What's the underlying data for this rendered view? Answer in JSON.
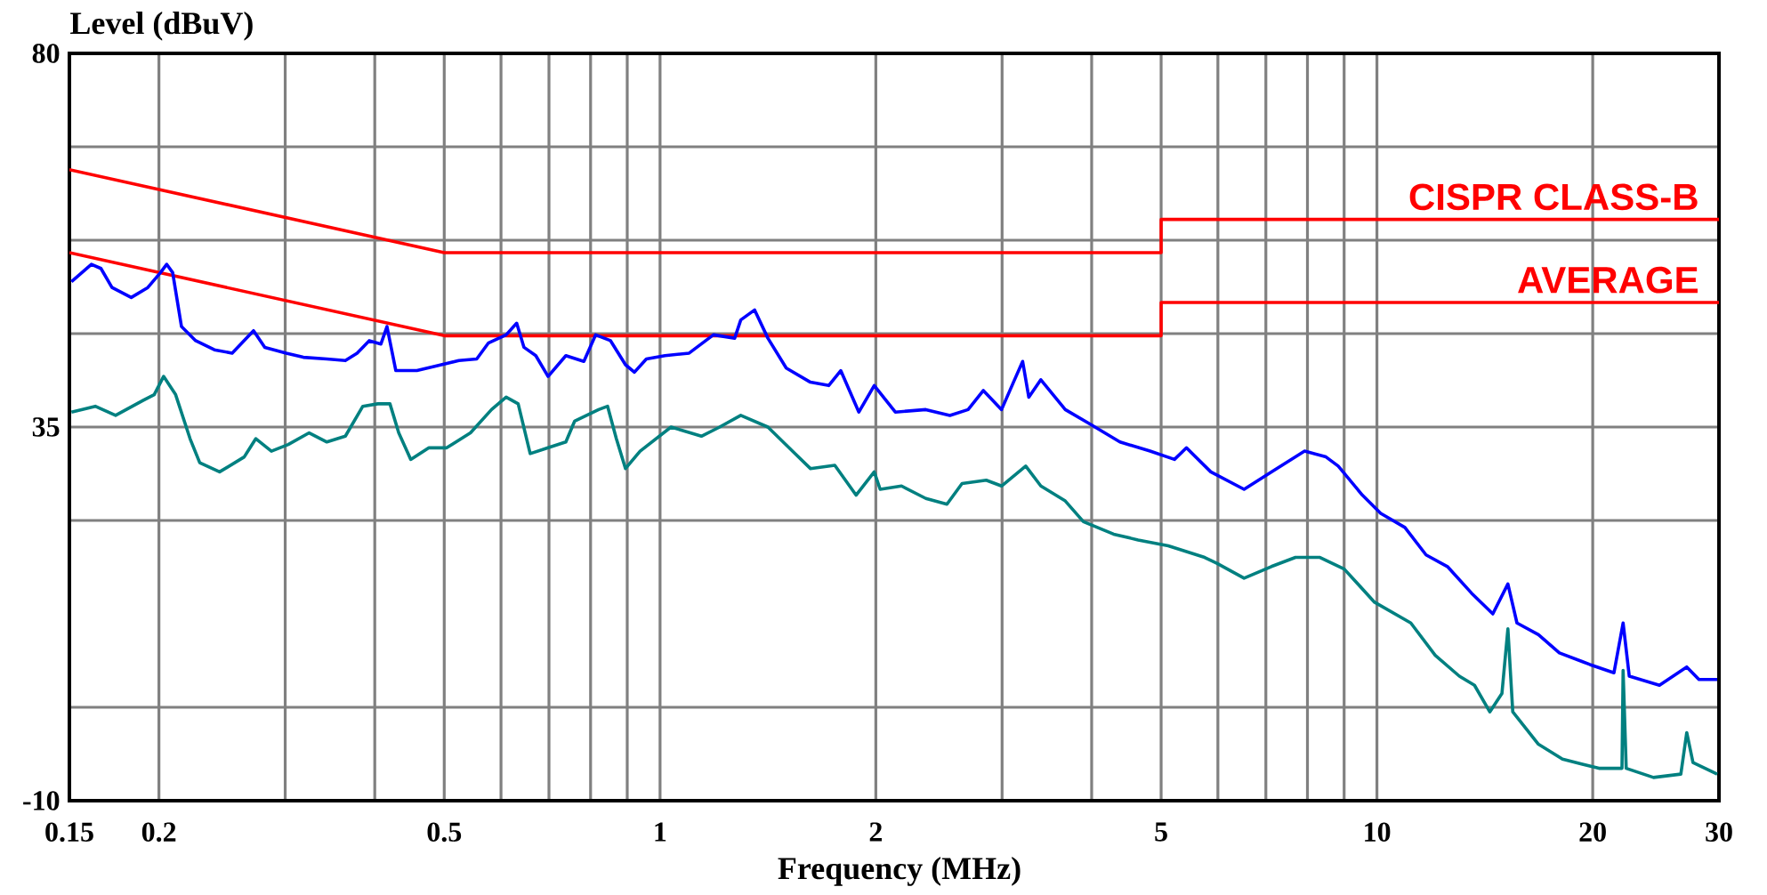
{
  "chart_data": {
    "type": "line",
    "xlabel": "Frequency (MHz)",
    "ylabel": "Level (dBuV)",
    "log": "x",
    "grid": true,
    "marker": "none",
    "xlim": [
      0.15,
      30
    ],
    "ylim": [
      -10,
      80
    ],
    "xticks": [
      0.15,
      0.2,
      {
        "value": 0.3,
        "label": null
      },
      {
        "value": 0.4,
        "label": null
      },
      0.5,
      {
        "value": 0.6,
        "label": null
      },
      {
        "value": 0.7,
        "label": null
      },
      {
        "value": 0.8,
        "label": null
      },
      {
        "value": 0.9,
        "label": null
      },
      1,
      2,
      {
        "value": 3,
        "label": null
      },
      {
        "value": 4,
        "label": null
      },
      5,
      {
        "value": 6,
        "label": null
      },
      {
        "value": 7,
        "label": null
      },
      {
        "value": 8,
        "label": null
      },
      {
        "value": 9,
        "label": null
      },
      10,
      20,
      30
    ],
    "yticks": [
      -10,
      {
        "value": 1.25,
        "label": null
      },
      {
        "value": 23.75,
        "label": null
      },
      35,
      {
        "value": 46.25,
        "label": null
      },
      {
        "value": 57.5,
        "label": null
      },
      {
        "value": 68.75,
        "label": null
      },
      80
    ],
    "series": [
      {
        "name": "CISPR CLASS-B",
        "color": "#ff0000",
        "x": [
          0.15,
          0.5,
          5,
          5,
          30
        ],
        "values": [
          66,
          56,
          56,
          60,
          60
        ]
      },
      {
        "name": "AVERAGE",
        "color": "#ff0000",
        "x": [
          0.15,
          0.5,
          5,
          5,
          30
        ],
        "values": [
          56,
          46,
          46,
          50,
          50
        ]
      },
      {
        "color": "#0000ff",
        "x": [
          0.151,
          0.161,
          0.166,
          0.172,
          0.183,
          0.193,
          0.201,
          0.205,
          0.209,
          0.215,
          0.225,
          0.239,
          0.253,
          0.271,
          0.281,
          0.301,
          0.318,
          0.343,
          0.364,
          0.378,
          0.393,
          0.408,
          0.416,
          0.428,
          0.458,
          0.485,
          0.524,
          0.555,
          0.576,
          0.61,
          0.631,
          0.646,
          0.671,
          0.698,
          0.739,
          0.783,
          0.813,
          0.853,
          0.895,
          0.921,
          0.957,
          1.016,
          1.098,
          1.187,
          1.271,
          1.296,
          1.355,
          1.414,
          1.5,
          1.621,
          1.719,
          1.787,
          1.894,
          1.99,
          2.129,
          2.348,
          2.537,
          2.69,
          2.825,
          2.995,
          3.112,
          3.205,
          3.269,
          3.398,
          3.675,
          3.972,
          4.38,
          4.826,
          5.219,
          5.424,
          5.865,
          6.527,
          7.126,
          7.929,
          8.49,
          8.831,
          9.543,
          10.12,
          10.94,
          11.71,
          12.54,
          13.55,
          14.51,
          15.23,
          15.68,
          16.8,
          17.97,
          19.82,
          21.41,
          22.05,
          22.49,
          24.78,
          27.05,
          28.13,
          29.83
        ],
        "values": [
          52.5,
          54.6,
          54.1,
          51.8,
          50.6,
          51.8,
          53.6,
          54.6,
          53.6,
          47.1,
          45.4,
          44.3,
          43.9,
          46.6,
          44.6,
          43.9,
          43.4,
          43.2,
          43.0,
          43.9,
          45.4,
          45.0,
          47.1,
          41.8,
          41.8,
          42.3,
          43.0,
          43.2,
          45.1,
          46.1,
          47.5,
          44.6,
          43.6,
          41.1,
          43.6,
          42.9,
          46.1,
          45.4,
          42.5,
          41.6,
          43.2,
          43.6,
          43.9,
          46.1,
          45.7,
          47.9,
          49.1,
          45.7,
          42.1,
          40.4,
          40.0,
          41.8,
          36.8,
          40.0,
          36.8,
          37.1,
          36.4,
          37.1,
          39.4,
          37.1,
          40.4,
          42.9,
          38.6,
          40.7,
          37.1,
          35.4,
          33.2,
          32.1,
          31.1,
          32.5,
          29.6,
          27.5,
          29.6,
          32.1,
          31.4,
          30.3,
          26.8,
          24.6,
          22.9,
          19.6,
          18.2,
          15.0,
          12.5,
          16.1,
          11.4,
          10.0,
          7.8,
          6.4,
          5.4,
          11.4,
          5.0,
          3.9,
          6.1,
          4.6,
          4.6
        ]
      },
      {
        "color": "#008080",
        "x": [
          0.151,
          0.163,
          0.174,
          0.19,
          0.197,
          0.203,
          0.211,
          0.221,
          0.228,
          0.243,
          0.263,
          0.273,
          0.287,
          0.303,
          0.324,
          0.343,
          0.364,
          0.385,
          0.404,
          0.42,
          0.432,
          0.449,
          0.476,
          0.504,
          0.544,
          0.582,
          0.61,
          0.634,
          0.659,
          0.698,
          0.739,
          0.76,
          0.821,
          0.845,
          0.869,
          0.895,
          0.938,
          1.036,
          1.142,
          1.211,
          1.296,
          1.414,
          1.53,
          1.621,
          1.753,
          1.877,
          1.99,
          2.028,
          2.172,
          2.348,
          2.513,
          2.638,
          2.851,
          2.995,
          3.237,
          3.398,
          3.675,
          3.896,
          4.293,
          4.644,
          5.116,
          5.75,
          5.98,
          6.527,
          7.126,
          7.7,
          8.328,
          9.003,
          9.924,
          11.15,
          12.06,
          13.03,
          13.68,
          14.37,
          14.94,
          15.23,
          15.47,
          16.8,
          18.15,
          20.4,
          21.97,
          22.05,
          22.27,
          24.31,
          26.54,
          27.05,
          27.6,
          29.83
        ],
        "values": [
          36.8,
          37.5,
          36.4,
          38.2,
          38.9,
          41.1,
          38.9,
          33.6,
          30.7,
          29.6,
          31.4,
          33.6,
          32.1,
          32.9,
          34.3,
          33.2,
          33.9,
          37.5,
          37.8,
          37.8,
          34.3,
          31.1,
          32.5,
          32.5,
          34.3,
          37.1,
          38.6,
          37.8,
          31.8,
          32.5,
          33.2,
          35.7,
          37.1,
          37.5,
          33.6,
          30.0,
          32.1,
          35.0,
          33.9,
          35.0,
          36.4,
          35.0,
          32.1,
          30.0,
          30.4,
          26.8,
          29.6,
          27.5,
          27.9,
          26.4,
          25.7,
          28.2,
          28.6,
          27.9,
          30.3,
          27.9,
          26.1,
          23.6,
          22.1,
          21.4,
          20.7,
          19.3,
          18.6,
          16.8,
          18.2,
          19.3,
          19.3,
          17.9,
          13.9,
          11.4,
          7.5,
          5.0,
          3.9,
          0.7,
          2.9,
          10.7,
          0.7,
          -3.2,
          -5.0,
          -6.1,
          -6.1,
          5.7,
          -6.1,
          -7.2,
          -6.8,
          -1.8,
          -5.4,
          -6.8
        ]
      }
    ]
  }
}
